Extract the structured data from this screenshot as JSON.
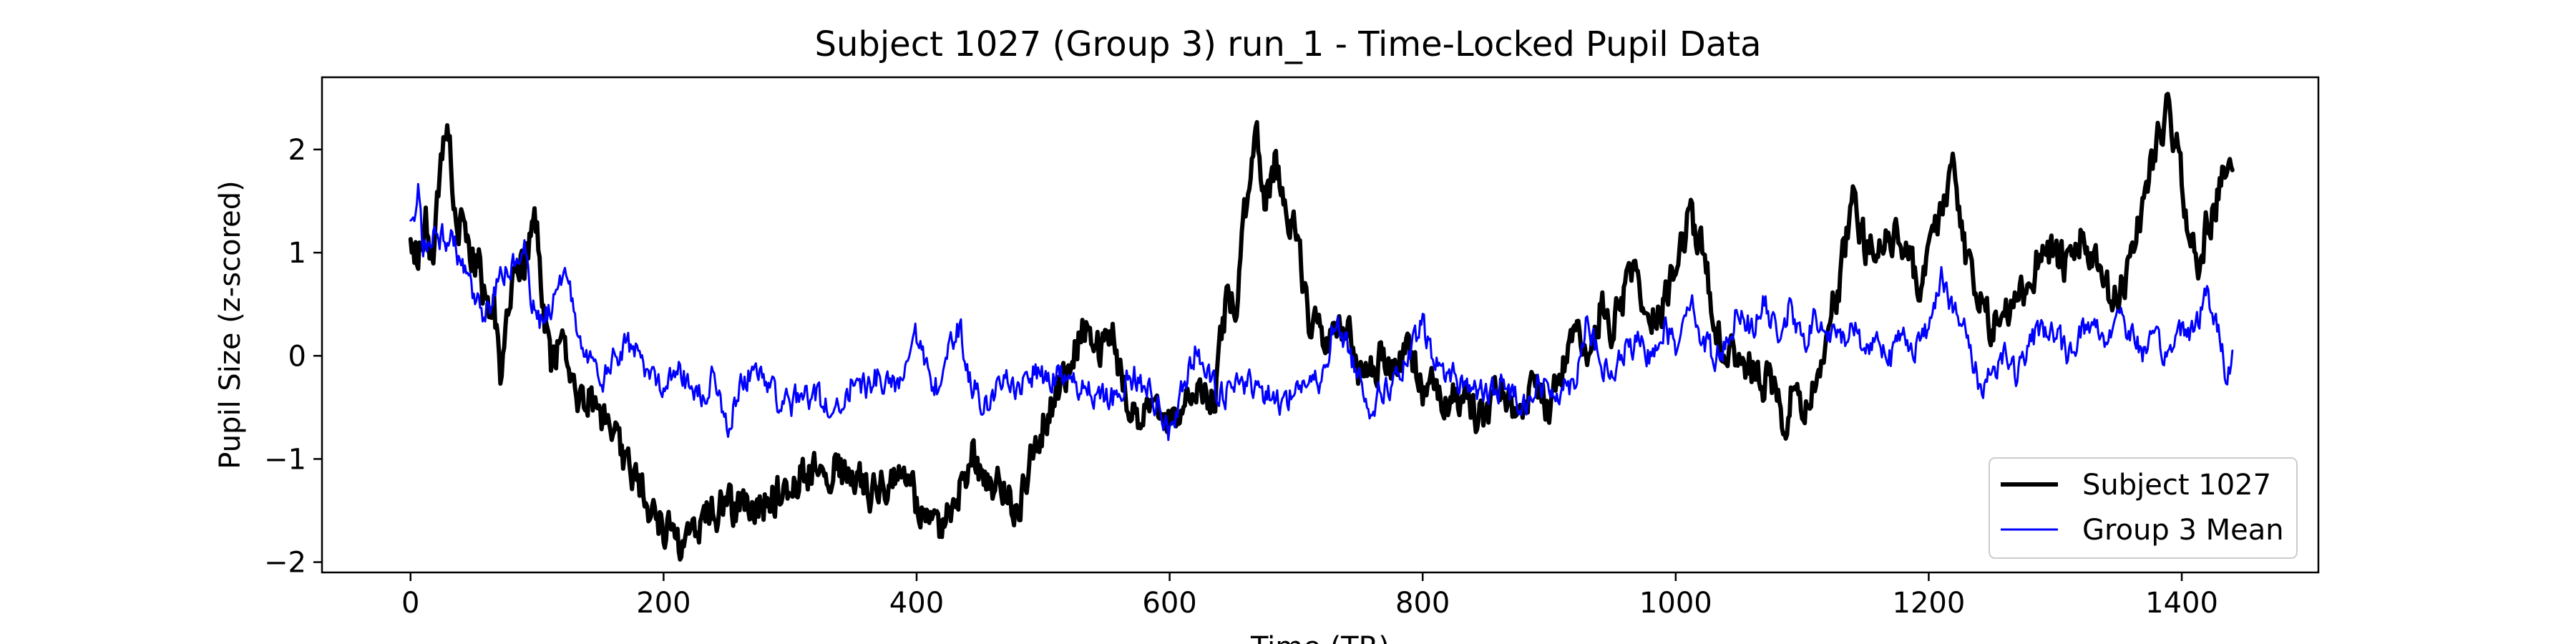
{
  "chart_data": {
    "type": "line",
    "title": "Subject 1027 (Group 3) run_1 - Time-Locked Pupil Data",
    "xlabel": "Time (TR)",
    "ylabel": "Pupil Size (z-scored)",
    "xlim": [
      -70,
      1508
    ],
    "ylim": [
      -2.1,
      2.7
    ],
    "xticks": [
      0,
      200,
      400,
      600,
      800,
      1000,
      1200,
      1400
    ],
    "yticks": [
      -2,
      -1,
      0,
      1,
      2
    ],
    "grid": false,
    "legend_position": "lower right",
    "series": [
      {
        "name": "Subject 1027",
        "color": "#000000",
        "anchors": [
          [
            0,
            1.05
          ],
          [
            6,
            0.95
          ],
          [
            12,
            1.3
          ],
          [
            18,
            0.8
          ],
          [
            24,
            1.9
          ],
          [
            30,
            2.2
          ],
          [
            36,
            1.2
          ],
          [
            42,
            1.35
          ],
          [
            48,
            0.9
          ],
          [
            54,
            1.0
          ],
          [
            60,
            0.4
          ],
          [
            66,
            0.55
          ],
          [
            72,
            -0.3
          ],
          [
            78,
            0.6
          ],
          [
            84,
            0.95
          ],
          [
            90,
            0.85
          ],
          [
            96,
            1.2
          ],
          [
            100,
            1.3
          ],
          [
            106,
            0.35
          ],
          [
            112,
            -0.1
          ],
          [
            120,
            0.2
          ],
          [
            128,
            -0.3
          ],
          [
            136,
            -0.4
          ],
          [
            145,
            -0.45
          ],
          [
            155,
            -0.7
          ],
          [
            165,
            -0.9
          ],
          [
            175,
            -1.1
          ],
          [
            185,
            -1.3
          ],
          [
            195,
            -1.6
          ],
          [
            205,
            -1.75
          ],
          [
            215,
            -1.8
          ],
          [
            225,
            -1.6
          ],
          [
            235,
            -1.55
          ],
          [
            245,
            -1.45
          ],
          [
            255,
            -1.5
          ],
          [
            265,
            -1.35
          ],
          [
            275,
            -1.5
          ],
          [
            285,
            -1.4
          ],
          [
            295,
            -1.3
          ],
          [
            305,
            -1.2
          ],
          [
            315,
            -1.1
          ],
          [
            325,
            -1.05
          ],
          [
            335,
            -1.1
          ],
          [
            345,
            -1.15
          ],
          [
            355,
            -1.2
          ],
          [
            365,
            -1.3
          ],
          [
            375,
            -1.25
          ],
          [
            385,
            -1.1
          ],
          [
            395,
            -1.3
          ],
          [
            405,
            -1.6
          ],
          [
            415,
            -1.75
          ],
          [
            425,
            -1.5
          ],
          [
            435,
            -1.25
          ],
          [
            445,
            -0.95
          ],
          [
            455,
            -1.2
          ],
          [
            465,
            -1.3
          ],
          [
            475,
            -1.45
          ],
          [
            485,
            -1.3
          ],
          [
            495,
            -0.8
          ],
          [
            505,
            -0.5
          ],
          [
            515,
            -0.3
          ],
          [
            525,
            0.05
          ],
          [
            535,
            0.3
          ],
          [
            545,
            0.0
          ],
          [
            555,
            0.15
          ],
          [
            565,
            -0.35
          ],
          [
            575,
            -0.65
          ],
          [
            585,
            -0.3
          ],
          [
            595,
            -0.55
          ],
          [
            605,
            -0.7
          ],
          [
            615,
            -0.35
          ],
          [
            625,
            -0.2
          ],
          [
            635,
            -0.45
          ],
          [
            645,
            0.55
          ],
          [
            652,
            0.4
          ],
          [
            660,
            1.4
          ],
          [
            668,
            2.2
          ],
          [
            676,
            1.5
          ],
          [
            684,
            1.9
          ],
          [
            692,
            1.4
          ],
          [
            700,
            1.2
          ],
          [
            710,
            0.3
          ],
          [
            720,
            0.2
          ],
          [
            730,
            0.1
          ],
          [
            740,
            0.3
          ],
          [
            750,
            -0.2
          ],
          [
            760,
            -0.1
          ],
          [
            770,
            0.0
          ],
          [
            780,
            -0.2
          ],
          [
            790,
            0.1
          ],
          [
            800,
            -0.3
          ],
          [
            810,
            -0.25
          ],
          [
            820,
            -0.45
          ],
          [
            830,
            -0.4
          ],
          [
            840,
            -0.55
          ],
          [
            850,
            -0.6
          ],
          [
            860,
            -0.3
          ],
          [
            870,
            -0.45
          ],
          [
            880,
            -0.5
          ],
          [
            890,
            -0.3
          ],
          [
            900,
            -0.5
          ],
          [
            910,
            -0.15
          ],
          [
            920,
            0.2
          ],
          [
            930,
            -0.1
          ],
          [
            940,
            0.5
          ],
          [
            950,
            0.3
          ],
          [
            960,
            0.6
          ],
          [
            970,
            0.85
          ],
          [
            980,
            0.3
          ],
          [
            990,
            0.5
          ],
          [
            1000,
            0.9
          ],
          [
            1010,
            1.35
          ],
          [
            1020,
            1.1
          ],
          [
            1030,
            0.45
          ],
          [
            1040,
            -0.1
          ],
          [
            1050,
            0.1
          ],
          [
            1060,
            -0.15
          ],
          [
            1070,
            -0.25
          ],
          [
            1080,
            -0.3
          ],
          [
            1086,
            -0.85
          ],
          [
            1094,
            -0.2
          ],
          [
            1100,
            -0.5
          ],
          [
            1110,
            -0.35
          ],
          [
            1120,
            0.3
          ],
          [
            1130,
            0.75
          ],
          [
            1140,
            1.5
          ],
          [
            1150,
            1.05
          ],
          [
            1160,
            1.0
          ],
          [
            1170,
            1.2
          ],
          [
            1180,
            1.1
          ],
          [
            1190,
            0.7
          ],
          [
            1200,
            0.9
          ],
          [
            1210,
            1.5
          ],
          [
            1220,
            1.8
          ],
          [
            1230,
            0.9
          ],
          [
            1240,
            0.5
          ],
          [
            1250,
            0.3
          ],
          [
            1260,
            0.4
          ],
          [
            1270,
            0.55
          ],
          [
            1280,
            0.7
          ],
          [
            1290,
            1.1
          ],
          [
            1300,
            1.0
          ],
          [
            1310,
            0.8
          ],
          [
            1320,
            1.15
          ],
          [
            1330,
            0.9
          ],
          [
            1340,
            0.6
          ],
          [
            1350,
            0.5
          ],
          [
            1360,
            1.0
          ],
          [
            1370,
            1.5
          ],
          [
            1380,
            2.1
          ],
          [
            1388,
            2.35
          ],
          [
            1396,
            2.0
          ],
          [
            1404,
            1.4
          ],
          [
            1412,
            0.8
          ],
          [
            1420,
            1.25
          ],
          [
            1428,
            1.55
          ],
          [
            1434,
            1.75
          ],
          [
            1440,
            1.8
          ]
        ],
        "noise": 0.17
      },
      {
        "name": "Group 3 Mean",
        "color": "#0000ff",
        "anchors": [
          [
            0,
            1.2
          ],
          [
            6,
            1.6
          ],
          [
            10,
            1.05
          ],
          [
            18,
            1.2
          ],
          [
            26,
            1.15
          ],
          [
            34,
            1.1
          ],
          [
            42,
            0.8
          ],
          [
            50,
            0.55
          ],
          [
            58,
            0.35
          ],
          [
            66,
            0.6
          ],
          [
            74,
            0.8
          ],
          [
            82,
            0.9
          ],
          [
            90,
            1.0
          ],
          [
            96,
            0.5
          ],
          [
            104,
            0.3
          ],
          [
            112,
            0.5
          ],
          [
            118,
            0.8
          ],
          [
            124,
            0.85
          ],
          [
            130,
            0.3
          ],
          [
            140,
            0.0
          ],
          [
            150,
            -0.3
          ],
          [
            160,
            -0.05
          ],
          [
            170,
            0.1
          ],
          [
            180,
            0.0
          ],
          [
            190,
            -0.2
          ],
          [
            200,
            -0.25
          ],
          [
            210,
            -0.1
          ],
          [
            220,
            -0.3
          ],
          [
            230,
            -0.4
          ],
          [
            240,
            -0.2
          ],
          [
            250,
            -0.7
          ],
          [
            260,
            -0.3
          ],
          [
            270,
            -0.15
          ],
          [
            280,
            -0.2
          ],
          [
            290,
            -0.4
          ],
          [
            300,
            -0.5
          ],
          [
            310,
            -0.35
          ],
          [
            320,
            -0.4
          ],
          [
            330,
            -0.5
          ],
          [
            340,
            -0.45
          ],
          [
            350,
            -0.25
          ],
          [
            360,
            -0.3
          ],
          [
            370,
            -0.2
          ],
          [
            380,
            -0.3
          ],
          [
            390,
            -0.15
          ],
          [
            398,
            0.35
          ],
          [
            406,
            -0.1
          ],
          [
            416,
            -0.3
          ],
          [
            426,
            0.1
          ],
          [
            434,
            0.3
          ],
          [
            442,
            -0.2
          ],
          [
            452,
            -0.5
          ],
          [
            462,
            -0.35
          ],
          [
            472,
            -0.25
          ],
          [
            482,
            -0.3
          ],
          [
            492,
            -0.15
          ],
          [
            502,
            -0.25
          ],
          [
            512,
            -0.2
          ],
          [
            522,
            -0.3
          ],
          [
            532,
            -0.25
          ],
          [
            542,
            -0.4
          ],
          [
            552,
            -0.45
          ],
          [
            562,
            -0.3
          ],
          [
            572,
            -0.2
          ],
          [
            582,
            -0.3
          ],
          [
            592,
            -0.5
          ],
          [
            600,
            -0.75
          ],
          [
            610,
            -0.3
          ],
          [
            620,
            0.05
          ],
          [
            630,
            -0.2
          ],
          [
            640,
            -0.4
          ],
          [
            650,
            -0.35
          ],
          [
            660,
            -0.25
          ],
          [
            670,
            -0.3
          ],
          [
            680,
            -0.4
          ],
          [
            690,
            -0.45
          ],
          [
            700,
            -0.3
          ],
          [
            710,
            -0.25
          ],
          [
            720,
            -0.3
          ],
          [
            730,
            0.35
          ],
          [
            740,
            0.1
          ],
          [
            750,
            -0.2
          ],
          [
            760,
            -0.5
          ],
          [
            770,
            -0.3
          ],
          [
            780,
            -0.25
          ],
          [
            790,
            0.0
          ],
          [
            800,
            0.3
          ],
          [
            810,
            -0.1
          ],
          [
            820,
            -0.15
          ],
          [
            830,
            -0.25
          ],
          [
            840,
            -0.3
          ],
          [
            850,
            -0.4
          ],
          [
            860,
            -0.3
          ],
          [
            870,
            -0.35
          ],
          [
            880,
            -0.45
          ],
          [
            890,
            -0.3
          ],
          [
            900,
            -0.35
          ],
          [
            910,
            -0.3
          ],
          [
            920,
            -0.25
          ],
          [
            930,
            0.4
          ],
          [
            940,
            -0.1
          ],
          [
            950,
            -0.2
          ],
          [
            960,
            0.05
          ],
          [
            970,
            0.1
          ],
          [
            980,
            0.0
          ],
          [
            990,
            0.3
          ],
          [
            1000,
            0.1
          ],
          [
            1010,
            0.6
          ],
          [
            1020,
            0.2
          ],
          [
            1030,
            0.0
          ],
          [
            1040,
            0.1
          ],
          [
            1050,
            0.5
          ],
          [
            1060,
            0.25
          ],
          [
            1070,
            0.5
          ],
          [
            1080,
            0.2
          ],
          [
            1090,
            0.45
          ],
          [
            1100,
            0.1
          ],
          [
            1110,
            0.35
          ],
          [
            1120,
            0.2
          ],
          [
            1130,
            0.15
          ],
          [
            1140,
            0.3
          ],
          [
            1150,
            0.05
          ],
          [
            1160,
            0.2
          ],
          [
            1170,
            0.0
          ],
          [
            1180,
            0.2
          ],
          [
            1190,
            0.1
          ],
          [
            1200,
            0.25
          ],
          [
            1210,
            0.85
          ],
          [
            1220,
            0.4
          ],
          [
            1230,
            0.2
          ],
          [
            1240,
            -0.3
          ],
          [
            1250,
            -0.15
          ],
          [
            1260,
            0.05
          ],
          [
            1270,
            -0.2
          ],
          [
            1280,
            0.1
          ],
          [
            1290,
            0.3
          ],
          [
            1300,
            0.2
          ],
          [
            1310,
            0.0
          ],
          [
            1320,
            0.25
          ],
          [
            1330,
            0.3
          ],
          [
            1340,
            0.15
          ],
          [
            1350,
            0.45
          ],
          [
            1360,
            0.2
          ],
          [
            1370,
            0.05
          ],
          [
            1380,
            0.1
          ],
          [
            1390,
            0.0
          ],
          [
            1400,
            0.3
          ],
          [
            1410,
            0.25
          ],
          [
            1420,
            0.6
          ],
          [
            1430,
            0.2
          ],
          [
            1435,
            -0.2
          ],
          [
            1440,
            0.05
          ]
        ],
        "noise": 0.12
      }
    ]
  }
}
